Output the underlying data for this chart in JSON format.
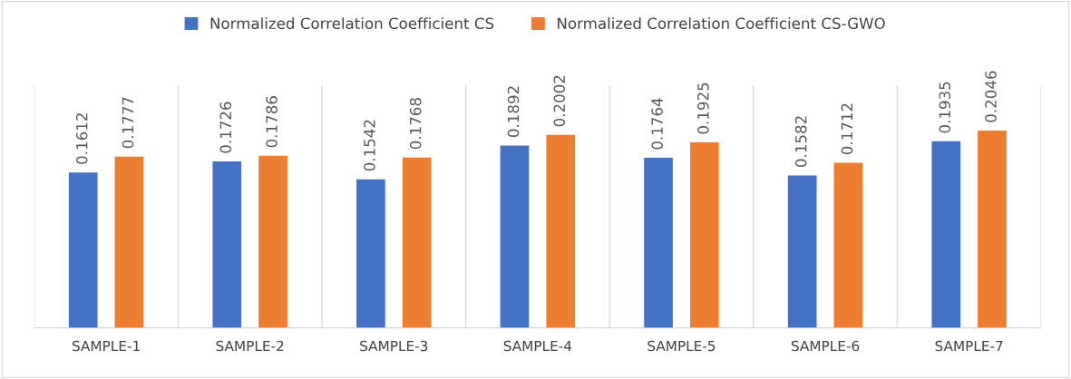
{
  "chart_data": {
    "type": "bar",
    "categories": [
      "SAMPLE-1",
      "SAMPLE-2",
      "SAMPLE-3",
      "SAMPLE-4",
      "SAMPLE-5",
      "SAMPLE-6",
      "SAMPLE-7"
    ],
    "series": [
      {
        "name": "Normalized Correlation Coefficient CS",
        "color": "#4472c4",
        "values": [
          0.1612,
          0.1726,
          0.1542,
          0.1892,
          0.1764,
          0.1582,
          0.1935
        ]
      },
      {
        "name": "Normalized Correlation Coefficient CS-GWO",
        "color": "#ed7d31",
        "values": [
          0.1777,
          0.1786,
          0.1768,
          0.2002,
          0.1925,
          0.1712,
          0.2046
        ]
      }
    ],
    "data_labels": true,
    "grid": "x",
    "legend": "top"
  }
}
